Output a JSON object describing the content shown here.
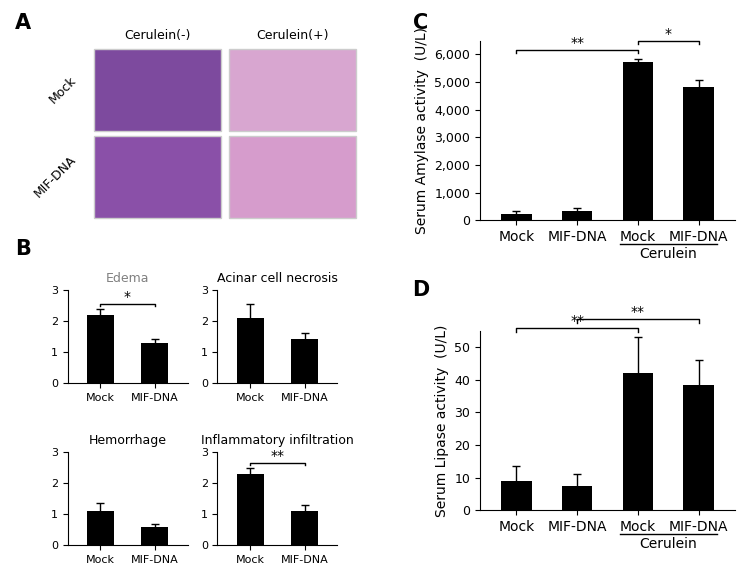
{
  "panel_labels": [
    "A",
    "B",
    "C",
    "D"
  ],
  "image_panel": {
    "columns": [
      "Cerulein(-)",
      "Cerulein(+)"
    ],
    "rows": [
      "Mock",
      "MIF-DNA"
    ]
  },
  "chart_data": [
    {
      "type": "bar",
      "title": "Edema",
      "categories": [
        "Mock",
        "MIF-DNA"
      ],
      "values": [
        2.2,
        1.3
      ],
      "errors": [
        0.2,
        0.1
      ],
      "color": "#000000",
      "ylim": [
        0,
        3
      ],
      "yticks": [
        0,
        1,
        2,
        3
      ],
      "significance": [
        {
          "from": 0,
          "to": 1,
          "text": "*"
        }
      ]
    },
    {
      "type": "bar",
      "title": "Acinar cell necrosis",
      "categories": [
        "Mock",
        "MIF-DNA"
      ],
      "values": [
        2.1,
        1.4
      ],
      "errors": [
        0.45,
        0.2
      ],
      "color": "#000000",
      "ylim": [
        0,
        3
      ],
      "yticks": [
        0,
        1,
        2,
        3
      ]
    },
    {
      "type": "bar",
      "title": "Hemorrhage",
      "categories": [
        "Mock",
        "MIF-DNA"
      ],
      "values": [
        1.1,
        0.6
      ],
      "errors": [
        0.25,
        0.1
      ],
      "color": "#000000",
      "ylim": [
        0,
        3
      ],
      "yticks": [
        0,
        1,
        2,
        3
      ]
    },
    {
      "type": "bar",
      "title": "Inflammatory infiltration",
      "categories": [
        "Mock",
        "MIF-DNA"
      ],
      "values": [
        2.3,
        1.1
      ],
      "errors": [
        0.2,
        0.2
      ],
      "color": "#000000",
      "ylim": [
        0,
        3
      ],
      "yticks": [
        0,
        1,
        2,
        3
      ],
      "significance": [
        {
          "from": 0,
          "to": 1,
          "text": "**"
        }
      ]
    },
    {
      "type": "bar",
      "y_label": "Serum Amylase activity  (U/L)",
      "categories": [
        "Mock",
        "MIF-DNA",
        "Mock",
        "MIF-DNA"
      ],
      "values": [
        230,
        330,
        5720,
        4820
      ],
      "errors": [
        100,
        120,
        120,
        250
      ],
      "color": "#000000",
      "ylim": [
        0,
        6500
      ],
      "yticks": [
        0,
        {
          "value": 1000,
          "label": "1,000"
        },
        {
          "value": 2000,
          "label": "2,000"
        },
        {
          "value": 3000,
          "label": "3,000"
        },
        {
          "value": 4000,
          "label": "4,000"
        },
        {
          "value": 5000,
          "label": "5,000"
        },
        {
          "value": 6000,
          "label": "6,000"
        }
      ],
      "significance": [
        {
          "from": 0,
          "to": 2,
          "text": "**"
        },
        {
          "from": 2,
          "to": 3,
          "text": "*"
        }
      ],
      "group_labels": [
        {
          "from": 2,
          "to": 3,
          "text": "Cerulein"
        }
      ]
    },
    {
      "type": "bar",
      "y_label": "Serum Lipase activity  (U/L)",
      "categories": [
        "Mock",
        "MIF-DNA",
        "Mock",
        "MIF-DNA"
      ],
      "values": [
        9,
        7.5,
        42,
        38.5
      ],
      "errors": [
        4.5,
        3.5,
        11,
        7.5
      ],
      "color": "#000000",
      "ylim": [
        0,
        55
      ],
      "yticks": [
        0,
        10,
        20,
        30,
        40,
        50
      ],
      "significance": [
        {
          "from": 0,
          "to": 2,
          "text": "**"
        },
        {
          "from": 1,
          "to": 3,
          "text": "**"
        }
      ],
      "group_labels": [
        {
          "from": 2,
          "to": 3,
          "text": "Cerulein"
        }
      ]
    }
  ]
}
